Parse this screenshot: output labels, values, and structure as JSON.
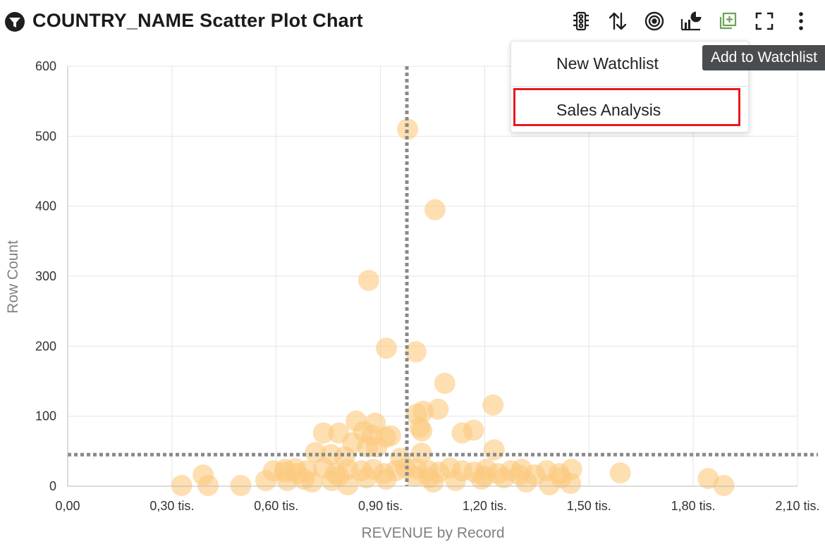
{
  "header": {
    "title": "COUNTRY_NAME Scatter Plot Chart",
    "toolbar": [
      "traffic-light-icon",
      "sort-icon",
      "target-icon",
      "chart-type-icon",
      "add-to-watchlist-icon",
      "fullscreen-icon",
      "more-options-icon"
    ]
  },
  "menu": {
    "items": [
      "New Watchlist",
      "Sales Analysis"
    ]
  },
  "tooltip": {
    "text": "Add to Watchlist"
  },
  "colors": {
    "point": "#fbc97e",
    "watchlist_icon": "#6aa35a",
    "highlight": "#e8191c",
    "reference_line": "#8a8a8a"
  },
  "chart_data": {
    "type": "scatter",
    "title": "COUNTRY_NAME Scatter Plot Chart",
    "xlabel": "REVENUE by Record",
    "ylabel": "Row Count",
    "xlim": [
      0,
      2100
    ],
    "ylim": [
      0,
      600
    ],
    "x_ticks": [
      0,
      300,
      600,
      900,
      1200,
      1500,
      1800,
      2100
    ],
    "x_tick_labels": [
      "0,00",
      "0,30 tis.",
      "0,60 tis.",
      "0,90 tis.",
      "1,20 tis.",
      "1,50 tis.",
      "1,80 tis.",
      "2,10 tis."
    ],
    "y_ticks": [
      0,
      100,
      200,
      300,
      400,
      500,
      600
    ],
    "y_tick_labels": [
      "0",
      "100",
      "200",
      "300",
      "400",
      "500",
      "600"
    ],
    "grid": true,
    "reference_lines": {
      "x": 976,
      "y": 45
    },
    "points": [
      {
        "x": 978,
        "y": 510
      },
      {
        "x": 1057,
        "y": 395
      },
      {
        "x": 866,
        "y": 294
      },
      {
        "x": 917,
        "y": 197
      },
      {
        "x": 1002,
        "y": 192
      },
      {
        "x": 1085,
        "y": 147
      },
      {
        "x": 1224,
        "y": 116
      },
      {
        "x": 1066,
        "y": 110
      },
      {
        "x": 1023,
        "y": 107
      },
      {
        "x": 1004,
        "y": 103
      },
      {
        "x": 830,
        "y": 93
      },
      {
        "x": 885,
        "y": 90
      },
      {
        "x": 1013,
        "y": 84
      },
      {
        "x": 1019,
        "y": 79
      },
      {
        "x": 1168,
        "y": 80
      },
      {
        "x": 1135,
        "y": 76
      },
      {
        "x": 736,
        "y": 76
      },
      {
        "x": 780,
        "y": 76
      },
      {
        "x": 851,
        "y": 78
      },
      {
        "x": 875,
        "y": 73
      },
      {
        "x": 915,
        "y": 70
      },
      {
        "x": 929,
        "y": 72
      },
      {
        "x": 820,
        "y": 62
      },
      {
        "x": 863,
        "y": 56
      },
      {
        "x": 889,
        "y": 56
      },
      {
        "x": 1227,
        "y": 52
      },
      {
        "x": 713,
        "y": 48
      },
      {
        "x": 758,
        "y": 45
      },
      {
        "x": 797,
        "y": 42
      },
      {
        "x": 1018,
        "y": 47
      },
      {
        "x": 958,
        "y": 40
      },
      {
        "x": 592,
        "y": 22
      },
      {
        "x": 625,
        "y": 24
      },
      {
        "x": 655,
        "y": 25
      },
      {
        "x": 688,
        "y": 22
      },
      {
        "x": 737,
        "y": 26
      },
      {
        "x": 770,
        "y": 18
      },
      {
        "x": 806,
        "y": 24
      },
      {
        "x": 845,
        "y": 22
      },
      {
        "x": 879,
        "y": 24
      },
      {
        "x": 910,
        "y": 18
      },
      {
        "x": 944,
        "y": 22
      },
      {
        "x": 972,
        "y": 26
      },
      {
        "x": 1004,
        "y": 25
      },
      {
        "x": 1038,
        "y": 22
      },
      {
        "x": 1068,
        "y": 20
      },
      {
        "x": 1100,
        "y": 26
      },
      {
        "x": 1135,
        "y": 22
      },
      {
        "x": 1170,
        "y": 20
      },
      {
        "x": 1205,
        "y": 24
      },
      {
        "x": 1238,
        "y": 18
      },
      {
        "x": 1275,
        "y": 22
      },
      {
        "x": 1306,
        "y": 24
      },
      {
        "x": 1344,
        "y": 16
      },
      {
        "x": 1378,
        "y": 22
      },
      {
        "x": 1414,
        "y": 18
      },
      {
        "x": 1450,
        "y": 24
      },
      {
        "x": 1590,
        "y": 19
      },
      {
        "x": 1843,
        "y": 11
      },
      {
        "x": 1888,
        "y": 1
      },
      {
        "x": 328,
        "y": 1
      },
      {
        "x": 390,
        "y": 16
      },
      {
        "x": 404,
        "y": 1
      },
      {
        "x": 498,
        "y": 1
      },
      {
        "x": 570,
        "y": 8
      },
      {
        "x": 632,
        "y": 8
      },
      {
        "x": 680,
        "y": 10
      },
      {
        "x": 703,
        "y": 6
      },
      {
        "x": 760,
        "y": 8
      },
      {
        "x": 806,
        "y": 2
      },
      {
        "x": 916,
        "y": 10
      },
      {
        "x": 1052,
        "y": 6
      },
      {
        "x": 1116,
        "y": 8
      },
      {
        "x": 1190,
        "y": 10
      },
      {
        "x": 1255,
        "y": 12
      },
      {
        "x": 1320,
        "y": 6
      },
      {
        "x": 1386,
        "y": 2
      },
      {
        "x": 1447,
        "y": 4
      },
      {
        "x": 625,
        "y": 20
      },
      {
        "x": 660,
        "y": 18
      },
      {
        "x": 780,
        "y": 14
      },
      {
        "x": 860,
        "y": 12
      },
      {
        "x": 1000,
        "y": 14
      },
      {
        "x": 1040,
        "y": 12
      },
      {
        "x": 1200,
        "y": 14
      },
      {
        "x": 1300,
        "y": 16
      },
      {
        "x": 1420,
        "y": 12
      }
    ]
  }
}
